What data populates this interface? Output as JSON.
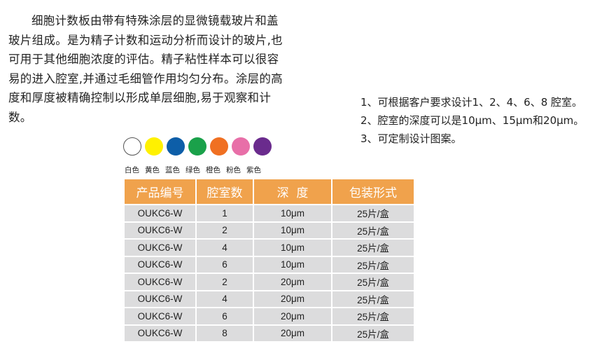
{
  "intro": "细胞计数板由带有特殊涂层的显微镜载玻片和盖玻片组成。是为精子计数和运动分析而设计的玻片,也可用于其他细胞浓度的评估。精子粘性样本可以很容易的进入腔室,并通过毛细管作用均匀分布。涂层的高度和厚度被精确控制以形成单层细胞,易于观察和计数。",
  "features": [
    "1、可根据客户要求设计1、2、4、6、8 腔室。",
    "2、腔室的深度可以是10μm、15μm和20μm。",
    "3、可定制设计图案。"
  ],
  "colors": [
    {
      "label": "白色",
      "hex": "#ffffff"
    },
    {
      "label": "黄色",
      "hex": "#fff100"
    },
    {
      "label": "蓝色",
      "hex": "#0d5ea8"
    },
    {
      "label": "绿色",
      "hex": "#1aa14a"
    },
    {
      "label": "橙色",
      "hex": "#f07022"
    },
    {
      "label": "粉色",
      "hex": "#e86fa8"
    },
    {
      "label": "紫色",
      "hex": "#6a2b8d"
    }
  ],
  "table": {
    "headers": [
      "产品编号",
      "腔室数",
      "深  度",
      "包装形式"
    ],
    "rows": [
      [
        "OUKC6-W",
        "1",
        "10μm",
        "25片/盒"
      ],
      [
        "OUKC6-W",
        "2",
        "10μm",
        "25片/盒"
      ],
      [
        "OUKC6-W",
        "4",
        "10μm",
        "25片/盒"
      ],
      [
        "OUKC6-W",
        "6",
        "10μm",
        "25片/盒"
      ],
      [
        "OUKC6-W",
        "2",
        "20μm",
        "25片/盒"
      ],
      [
        "OUKC6-W",
        "4",
        "20μm",
        "25片/盒"
      ],
      [
        "OUKC6-W",
        "6",
        "20μm",
        "25片/盒"
      ],
      [
        "OUKC6-W",
        "8",
        "20μm",
        "25片/盒"
      ]
    ]
  }
}
